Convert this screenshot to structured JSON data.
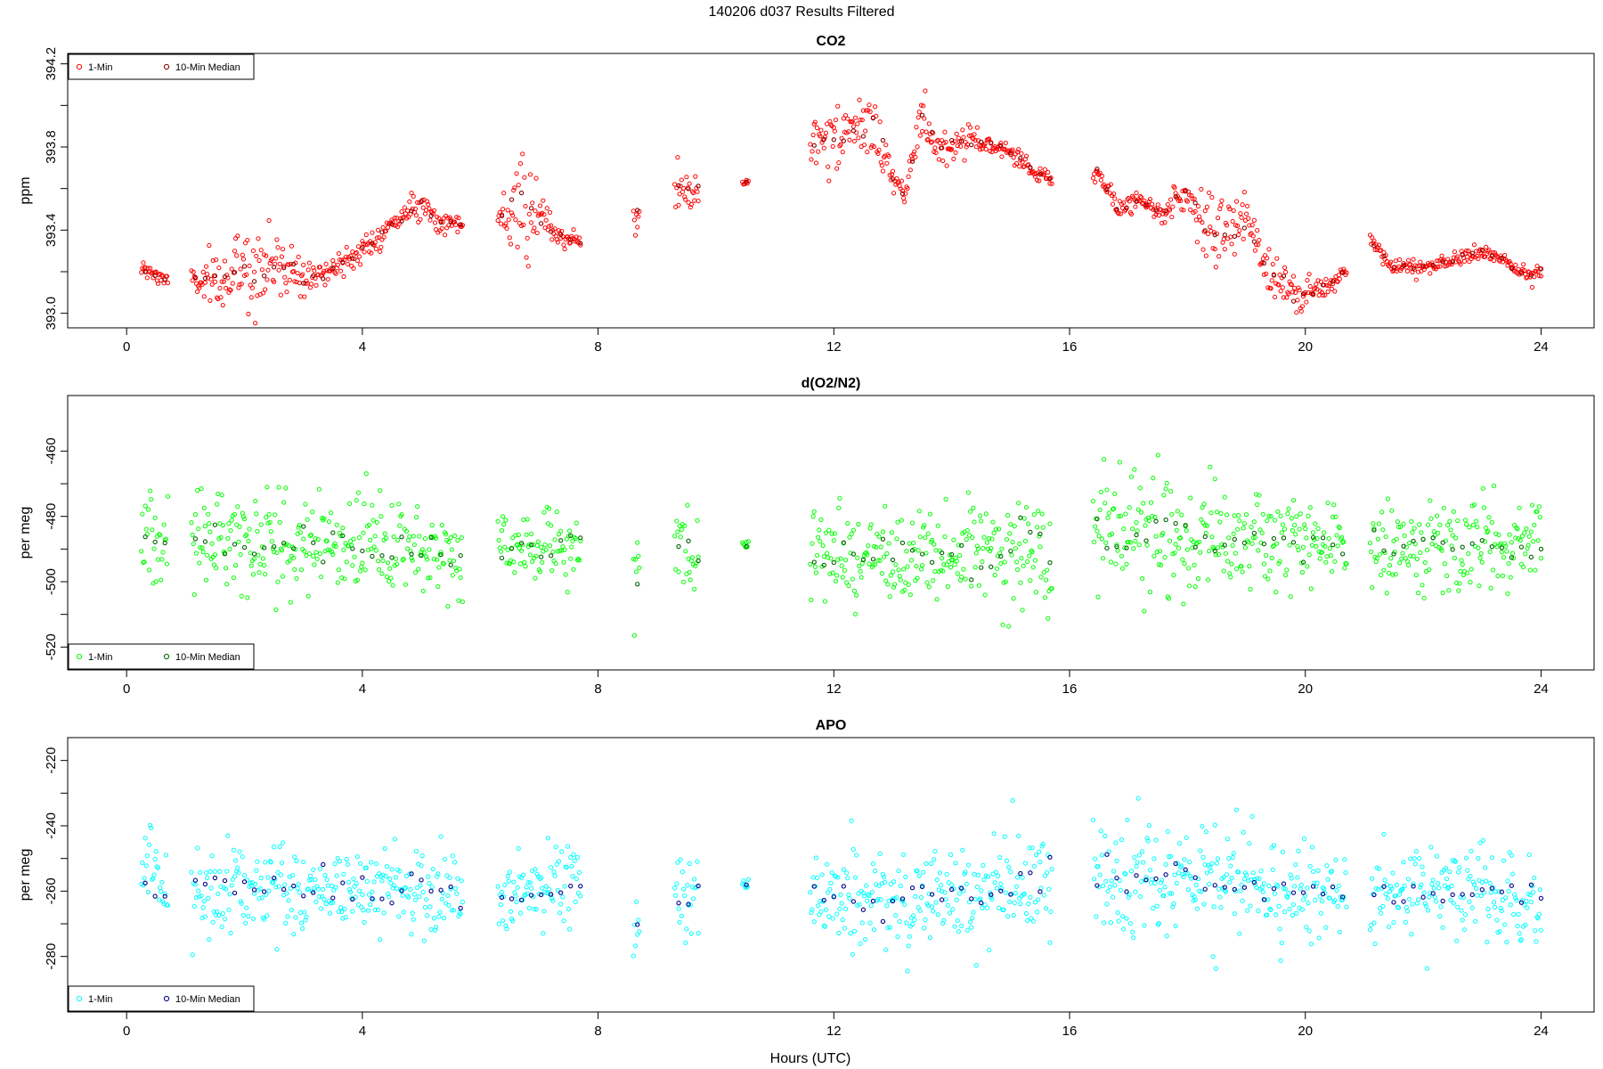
{
  "figure": {
    "title": "140206   d037   Results Filtered",
    "xlabel": "Hours (UTC)"
  },
  "chart_data": [
    {
      "type": "scatter",
      "title": "CO2",
      "xlabel": "",
      "ylabel": "ppm",
      "xlim": [
        -1.0,
        24.9
      ],
      "ylim": [
        392.93,
        394.25
      ],
      "xticks": [
        0,
        4,
        8,
        12,
        16,
        20,
        24
      ],
      "yticks": [
        393.0,
        393.4,
        393.8,
        394.2
      ],
      "ytick_labels": [
        "393.0",
        "393.4",
        "393.8",
        "394.2"
      ],
      "yminor": [
        393.2,
        393.6,
        394.0
      ],
      "legend": {
        "position": "top-left",
        "entries": [
          "1-Min",
          "10-Min Median"
        ]
      },
      "series": [
        {
          "name": "1-Min",
          "color": "#ff0000",
          "segments": [
            [
              0.25,
              0.7
            ],
            [
              1.1,
              5.7
            ],
            [
              6.3,
              7.7
            ],
            [
              8.6,
              8.7
            ],
            [
              9.3,
              9.7
            ],
            [
              10.45,
              10.55
            ],
            [
              11.6,
              15.7
            ],
            [
              16.4,
              20.7
            ],
            [
              21.1,
              24.0
            ]
          ],
          "anchors_x": [
            0.25,
            0.7,
            1.1,
            1.4,
            2.0,
            2.8,
            3.2,
            4.0,
            4.6,
            5.0,
            5.3,
            5.5,
            5.7,
            6.3,
            6.7,
            7.0,
            7.3,
            7.7,
            8.6,
            9.3,
            9.7,
            10.5,
            11.6,
            12.0,
            12.3,
            12.7,
            13.0,
            13.2,
            13.5,
            13.8,
            14.2,
            14.5,
            15.0,
            15.4,
            15.7,
            16.4,
            16.8,
            17.2,
            17.6,
            18.0,
            18.3,
            18.6,
            19.0,
            19.3,
            19.6,
            19.9,
            20.3,
            20.7,
            21.1,
            21.5,
            22.0,
            22.5,
            23.0,
            23.4,
            23.8,
            24.0
          ],
          "anchors_y": [
            393.21,
            393.16,
            393.17,
            393.13,
            393.22,
            393.23,
            393.17,
            393.3,
            393.45,
            393.53,
            393.44,
            393.44,
            393.42,
            393.44,
            393.5,
            393.45,
            393.38,
            393.34,
            393.44,
            393.6,
            393.58,
            393.63,
            393.84,
            393.8,
            393.88,
            393.9,
            393.65,
            393.57,
            393.95,
            393.8,
            393.85,
            393.82,
            393.78,
            393.68,
            393.64,
            393.72,
            393.5,
            393.55,
            393.48,
            393.6,
            393.4,
            393.38,
            393.45,
            393.24,
            393.15,
            393.07,
            393.12,
            393.2,
            393.36,
            393.22,
            393.22,
            393.25,
            393.3,
            393.25,
            393.18,
            393.2
          ],
          "scatter_sd": [
            0.02,
            0.02,
            0.02,
            0.08,
            0.1,
            0.09,
            0.03,
            0.03,
            0.03,
            0.03,
            0.02,
            0.02,
            0.02,
            0.02,
            0.15,
            0.06,
            0.02,
            0.02,
            0.05,
            0.07,
            0.07,
            0.01,
            0.06,
            0.09,
            0.06,
            0.07,
            0.04,
            0.02,
            0.09,
            0.04,
            0.08,
            0.02,
            0.02,
            0.02,
            0.02,
            0.03,
            0.03,
            0.02,
            0.02,
            0.07,
            0.07,
            0.08,
            0.08,
            0.05,
            0.05,
            0.05,
            0.03,
            0.02,
            0.02,
            0.02,
            0.02,
            0.02,
            0.02,
            0.02,
            0.02,
            0.02
          ]
        },
        {
          "name": "10-Min Median",
          "color": "#8b0000"
        }
      ]
    },
    {
      "type": "scatter",
      "title": "d(O2/N2)",
      "xlabel": "",
      "ylabel": "per meg",
      "xlim": [
        -1.0,
        24.9
      ],
      "ylim": [
        -527,
        -443
      ],
      "xticks": [
        0,
        4,
        8,
        12,
        16,
        20,
        24
      ],
      "yticks": [
        -460,
        -480,
        -500,
        -520
      ],
      "ytick_labels": [
        "-460",
        "-480",
        "-500",
        "-520"
      ],
      "yminor": [
        -470,
        -490,
        -510
      ],
      "legend": {
        "position": "bottom-left",
        "entries": [
          "1-Min",
          "10-Min Median"
        ]
      },
      "series": [
        {
          "name": "1-Min",
          "color": "#00ff00",
          "segments": [
            [
              0.25,
              0.7
            ],
            [
              1.1,
              5.7
            ],
            [
              6.3,
              7.7
            ],
            [
              8.6,
              8.7
            ],
            [
              9.3,
              9.7
            ],
            [
              10.45,
              10.55
            ],
            [
              11.6,
              15.7
            ],
            [
              16.4,
              20.7
            ],
            [
              21.1,
              24.0
            ]
          ],
          "anchors_x": [
            0.25,
            0.7,
            1.1,
            3.0,
            5.0,
            5.7,
            6.3,
            7.7,
            8.6,
            9.3,
            9.7,
            10.5,
            11.6,
            14.0,
            15.7,
            16.4,
            18.0,
            20.7,
            21.1,
            24.0
          ],
          "anchors_y": [
            -484,
            -490,
            -486,
            -488,
            -490,
            -493,
            -490,
            -488,
            -498,
            -490,
            -492,
            -489,
            -492,
            -492,
            -489,
            -484,
            -486,
            -488,
            -489,
            -490
          ],
          "scatter_sd": [
            7,
            7,
            8,
            7,
            7,
            8,
            5,
            6,
            6,
            12,
            6,
            1,
            7,
            8,
            9,
            10,
            9,
            7,
            7,
            7
          ]
        },
        {
          "name": "10-Min Median",
          "color": "#006400"
        }
      ]
    },
    {
      "type": "scatter",
      "title": "APO",
      "xlabel": "Hours (UTC)",
      "ylabel": "per meg",
      "xlim": [
        -1.0,
        24.9
      ],
      "ylim": [
        -297,
        -213
      ],
      "xticks": [
        0,
        4,
        8,
        12,
        16,
        20,
        24
      ],
      "yticks": [
        -220,
        -240,
        -260,
        -280
      ],
      "ytick_labels": [
        "-220",
        "-240",
        "-260",
        "-280"
      ],
      "yminor": [
        -230,
        -250,
        -270
      ],
      "legend": {
        "position": "bottom-left",
        "entries": [
          "1-Min",
          "10-Min Median"
        ]
      },
      "series": [
        {
          "name": "1-Min",
          "color": "#00ffff",
          "segments": [
            [
              0.25,
              0.7
            ],
            [
              1.1,
              5.7
            ],
            [
              6.3,
              7.7
            ],
            [
              8.6,
              8.7
            ],
            [
              9.3,
              9.7
            ],
            [
              10.45,
              10.55
            ],
            [
              11.6,
              15.7
            ],
            [
              16.4,
              20.7
            ],
            [
              21.1,
              24.0
            ]
          ],
          "anchors_x": [
            0.25,
            0.7,
            1.1,
            3.0,
            5.0,
            5.7,
            6.3,
            7.7,
            8.6,
            9.3,
            9.7,
            10.5,
            11.6,
            14.0,
            15.7,
            16.4,
            18.0,
            20.7,
            21.1,
            24.0
          ],
          "anchors_y": [
            -254,
            -262,
            -258,
            -259,
            -260,
            -262,
            -262,
            -258,
            -268,
            -258,
            -262,
            -258,
            -262,
            -262,
            -258,
            -256,
            -258,
            -260,
            -260,
            -262
          ],
          "scatter_sd": [
            7,
            7,
            8,
            7,
            7,
            8,
            5,
            6,
            6,
            12,
            6,
            1,
            7,
            8,
            9,
            10,
            9,
            7,
            7,
            7
          ]
        },
        {
          "name": "10-Min Median",
          "color": "#00008b"
        }
      ]
    }
  ]
}
